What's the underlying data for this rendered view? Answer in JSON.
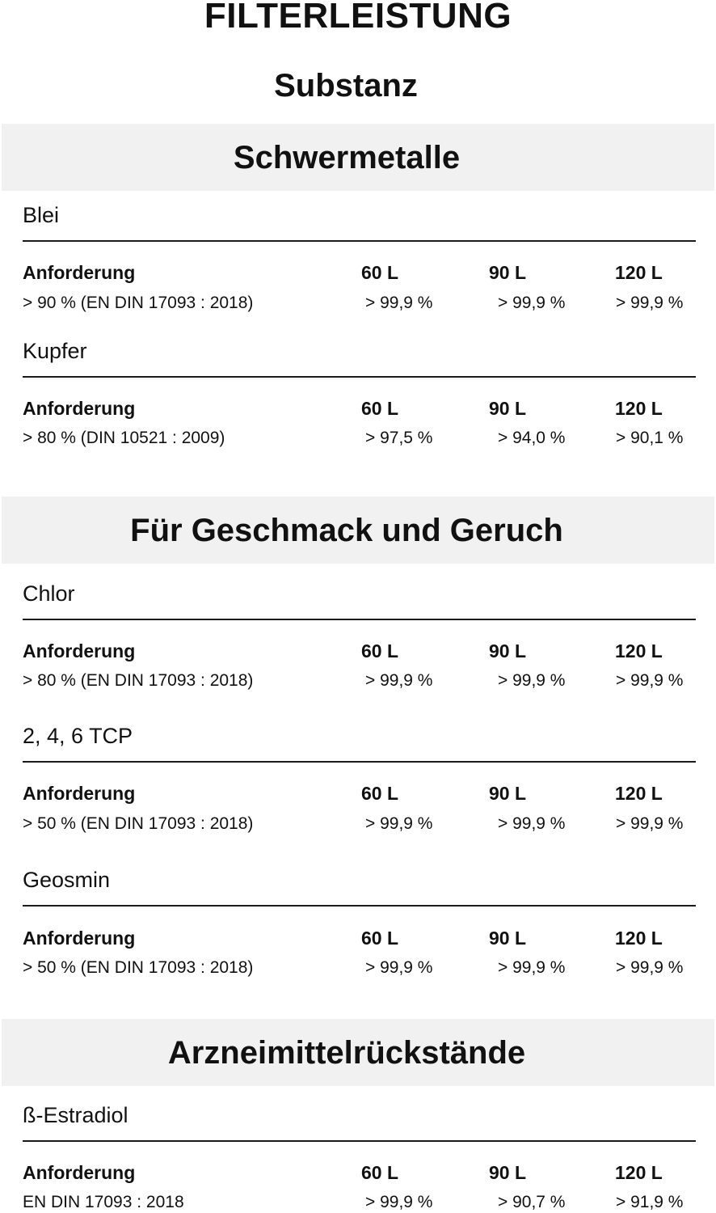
{
  "title": "FILTERLEISTUNG",
  "subtitle": "Substanz",
  "columns": {
    "requirement": "Anforderung",
    "c60": "60 L",
    "c90": "90 L",
    "c120": "120 L"
  },
  "sections": [
    {
      "name": "Schwermetalle",
      "substances": [
        {
          "name": "Blei",
          "requirement": "> 90 % (EN DIN 17093 : 2018)",
          "v60": "> 99,9 %",
          "v90": "> 99,9 %",
          "v120": "> 99,9 %"
        },
        {
          "name": "Kupfer",
          "requirement": "> 80 % (DIN 10521 : 2009)",
          "v60": "> 97,5 %",
          "v90": "> 94,0 %",
          "v120": "> 90,1 %"
        }
      ]
    },
    {
      "name": "Für Geschmack und Geruch",
      "substances": [
        {
          "name": "Chlor",
          "requirement": "> 80 % (EN DIN 17093 : 2018)",
          "v60": "> 99,9 %",
          "v90": "> 99,9 %",
          "v120": "> 99,9 %"
        },
        {
          "name": "2, 4, 6 TCP",
          "requirement": "> 50 % (EN DIN 17093 : 2018)",
          "v60": "> 99,9 %",
          "v90": "> 99,9 %",
          "v120": "> 99,9 %"
        },
        {
          "name": "Geosmin",
          "requirement": "> 50 % (EN DIN 17093 : 2018)",
          "v60": "> 99,9 %",
          "v90": "> 99,9 %",
          "v120": "> 99,9 %"
        }
      ]
    },
    {
      "name": "Arzneimittelrückstände",
      "substances": [
        {
          "name": "ß-Estradiol",
          "requirement": "EN DIN 17093 : 2018",
          "v60": "> 99,9 %",
          "v90": "> 90,7 %",
          "v120": "> 91,9 %"
        }
      ]
    }
  ]
}
